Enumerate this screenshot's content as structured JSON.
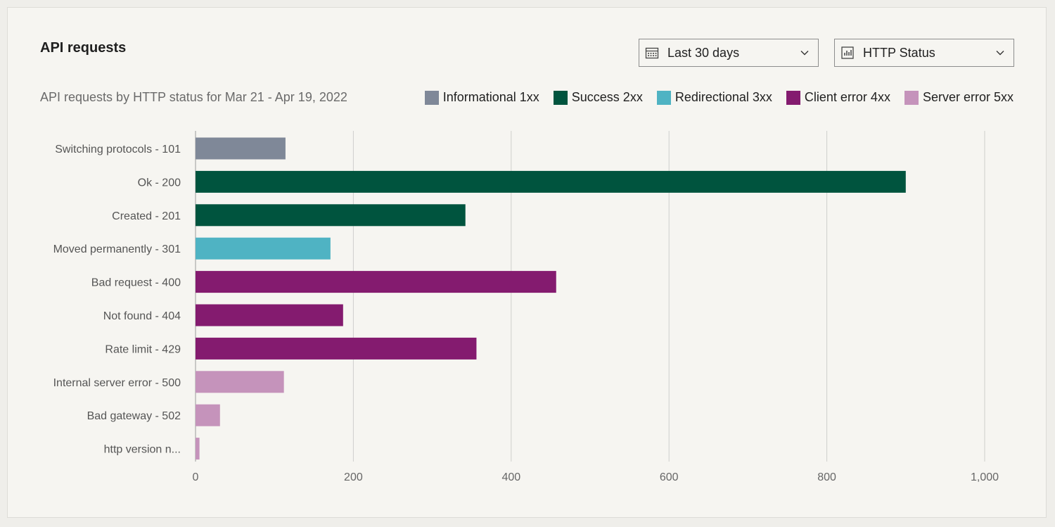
{
  "header": {
    "title": "API requests",
    "subtitle": "API requests by HTTP status for Mar 21 - Apr 19, 2022"
  },
  "controls": {
    "range_label": "Last 30 days",
    "range_icon": "calendar-icon",
    "group_label": "HTTP Status",
    "group_icon": "bar-chart-icon"
  },
  "legend": [
    {
      "label": "Informational 1xx",
      "color": "#7f8898"
    },
    {
      "label": "Success 2xx",
      "color": "#00543e"
    },
    {
      "label": "Redirectional 3xx",
      "color": "#4fb3c3"
    },
    {
      "label": "Client error 4xx",
      "color": "#841b6f"
    },
    {
      "label": "Server error 5xx",
      "color": "#c593bb"
    }
  ],
  "chart_data": {
    "type": "bar",
    "orientation": "horizontal",
    "categories": [
      "Switching protocols - 101",
      "Ok - 200",
      "Created - 201",
      "Moved permanently - 301",
      "Bad request - 400",
      "Not found - 404",
      "Rate limit - 429",
      "Internal server error - 500",
      "Bad gateway - 502",
      "http version n..."
    ],
    "values": [
      114,
      900,
      342,
      171,
      457,
      187,
      356,
      112,
      31,
      5
    ],
    "groups": [
      0,
      1,
      1,
      2,
      3,
      3,
      3,
      4,
      4,
      4
    ],
    "xlim": [
      0,
      1000
    ],
    "ticks": [
      0,
      200,
      400,
      600,
      800,
      1000
    ],
    "tick_labels": [
      "0",
      "200",
      "400",
      "600",
      "800",
      "1,000"
    ],
    "grid": "vertical",
    "legend_position": "top-right"
  }
}
